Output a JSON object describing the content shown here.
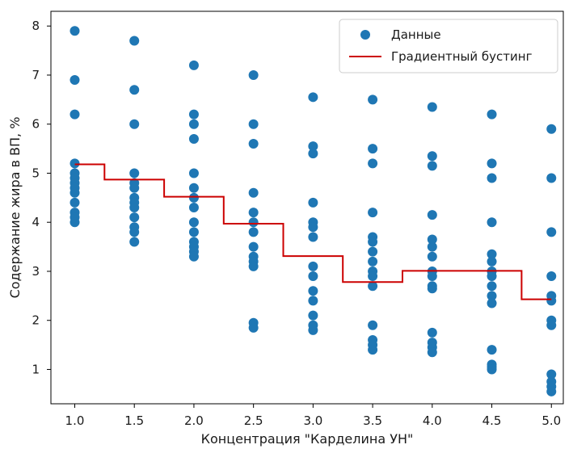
{
  "chart_data": {
    "type": "scatter",
    "xlabel": "Концентрация \"Карделина УН\"",
    "ylabel": "Содержание жира в ВП, %",
    "xlim": [
      0.8,
      5.1
    ],
    "ylim": [
      0.3,
      8.3
    ],
    "xticks": [
      "1.0",
      "1.5",
      "2.0",
      "2.5",
      "3.0",
      "3.5",
      "4.0",
      "4.5",
      "5.0"
    ],
    "yticks": [
      "1",
      "2",
      "3",
      "4",
      "5",
      "6",
      "7",
      "8"
    ],
    "grid": false,
    "legend_position": "top-right",
    "legend": [
      {
        "label": "Данные",
        "marker": "circle"
      },
      {
        "label": "Градиентный бустинг",
        "marker": "line"
      }
    ],
    "colors": {
      "points": "#1f77b4",
      "model_line": "#cc0000"
    },
    "scatter_series": {
      "name": "Данные",
      "points": [
        [
          1.0,
          7.9
        ],
        [
          1.0,
          6.9
        ],
        [
          1.0,
          6.2
        ],
        [
          1.0,
          5.2
        ],
        [
          1.0,
          5.0
        ],
        [
          1.0,
          4.9
        ],
        [
          1.0,
          4.8
        ],
        [
          1.0,
          4.7
        ],
        [
          1.0,
          4.6
        ],
        [
          1.0,
          4.4
        ],
        [
          1.0,
          4.2
        ],
        [
          1.0,
          4.1
        ],
        [
          1.0,
          4.0
        ],
        [
          1.5,
          7.7
        ],
        [
          1.5,
          6.7
        ],
        [
          1.5,
          6.0
        ],
        [
          1.5,
          5.0
        ],
        [
          1.5,
          4.8
        ],
        [
          1.5,
          4.7
        ],
        [
          1.5,
          4.5
        ],
        [
          1.5,
          4.4
        ],
        [
          1.5,
          4.3
        ],
        [
          1.5,
          4.1
        ],
        [
          1.5,
          3.9
        ],
        [
          1.5,
          3.8
        ],
        [
          1.5,
          3.6
        ],
        [
          2.0,
          7.2
        ],
        [
          2.0,
          6.2
        ],
        [
          2.0,
          6.0
        ],
        [
          2.0,
          5.7
        ],
        [
          2.0,
          5.0
        ],
        [
          2.0,
          4.7
        ],
        [
          2.0,
          4.5
        ],
        [
          2.0,
          4.3
        ],
        [
          2.0,
          4.0
        ],
        [
          2.0,
          3.8
        ],
        [
          2.0,
          3.6
        ],
        [
          2.0,
          3.5
        ],
        [
          2.0,
          3.4
        ],
        [
          2.0,
          3.3
        ],
        [
          2.5,
          7.0
        ],
        [
          2.5,
          6.0
        ],
        [
          2.5,
          5.6
        ],
        [
          2.5,
          4.6
        ],
        [
          2.5,
          4.2
        ],
        [
          2.5,
          4.0
        ],
        [
          2.5,
          3.8
        ],
        [
          2.5,
          3.5
        ],
        [
          2.5,
          3.3
        ],
        [
          2.5,
          3.2
        ],
        [
          2.5,
          3.1
        ],
        [
          2.5,
          1.95
        ],
        [
          2.5,
          1.85
        ],
        [
          3.0,
          6.55
        ],
        [
          3.0,
          5.55
        ],
        [
          3.0,
          5.4
        ],
        [
          3.0,
          4.4
        ],
        [
          3.0,
          4.0
        ],
        [
          3.0,
          3.9
        ],
        [
          3.0,
          3.7
        ],
        [
          3.0,
          3.1
        ],
        [
          3.0,
          2.9
        ],
        [
          3.0,
          2.6
        ],
        [
          3.0,
          2.4
        ],
        [
          3.0,
          2.1
        ],
        [
          3.0,
          1.9
        ],
        [
          3.0,
          1.8
        ],
        [
          3.5,
          6.5
        ],
        [
          3.5,
          5.5
        ],
        [
          3.5,
          5.2
        ],
        [
          3.5,
          4.2
        ],
        [
          3.5,
          3.7
        ],
        [
          3.5,
          3.6
        ],
        [
          3.5,
          3.4
        ],
        [
          3.5,
          3.2
        ],
        [
          3.5,
          3.0
        ],
        [
          3.5,
          2.9
        ],
        [
          3.5,
          2.7
        ],
        [
          3.5,
          1.9
        ],
        [
          3.5,
          1.6
        ],
        [
          3.5,
          1.5
        ],
        [
          3.5,
          1.4
        ],
        [
          4.0,
          6.35
        ],
        [
          4.0,
          5.35
        ],
        [
          4.0,
          5.15
        ],
        [
          4.0,
          4.15
        ],
        [
          4.0,
          3.65
        ],
        [
          4.0,
          3.5
        ],
        [
          4.0,
          3.3
        ],
        [
          4.0,
          3.0
        ],
        [
          4.0,
          2.9
        ],
        [
          4.0,
          2.7
        ],
        [
          4.0,
          2.65
        ],
        [
          4.0,
          1.75
        ],
        [
          4.0,
          1.55
        ],
        [
          4.0,
          1.45
        ],
        [
          4.0,
          1.35
        ],
        [
          4.5,
          6.2
        ],
        [
          4.5,
          5.2
        ],
        [
          4.5,
          4.9
        ],
        [
          4.5,
          4.0
        ],
        [
          4.5,
          3.35
        ],
        [
          4.5,
          3.2
        ],
        [
          4.5,
          3.0
        ],
        [
          4.5,
          2.9
        ],
        [
          4.5,
          2.7
        ],
        [
          4.5,
          2.5
        ],
        [
          4.5,
          2.35
        ],
        [
          4.5,
          1.4
        ],
        [
          4.5,
          1.1
        ],
        [
          4.5,
          1.05
        ],
        [
          4.5,
          1.0
        ],
        [
          5.0,
          5.9
        ],
        [
          5.0,
          4.9
        ],
        [
          5.0,
          3.8
        ],
        [
          5.0,
          2.9
        ],
        [
          5.0,
          2.5
        ],
        [
          5.0,
          2.4
        ],
        [
          5.0,
          2.0
        ],
        [
          5.0,
          1.9
        ],
        [
          5.0,
          0.9
        ],
        [
          5.0,
          0.75
        ],
        [
          5.0,
          0.65
        ],
        [
          5.0,
          0.55
        ]
      ]
    },
    "line_series": {
      "name": "Градиентный бустинг",
      "points": [
        [
          1.0,
          5.18
        ],
        [
          1.25,
          5.18
        ],
        [
          1.25,
          4.87
        ],
        [
          1.75,
          4.87
        ],
        [
          1.75,
          4.52
        ],
        [
          2.25,
          4.52
        ],
        [
          2.25,
          3.97
        ],
        [
          2.75,
          3.97
        ],
        [
          2.75,
          3.31
        ],
        [
          3.25,
          3.31
        ],
        [
          3.25,
          2.78
        ],
        [
          3.75,
          2.78
        ],
        [
          3.75,
          3.01
        ],
        [
          4.75,
          3.01
        ],
        [
          4.75,
          2.43
        ],
        [
          5.0,
          2.43
        ]
      ]
    }
  }
}
